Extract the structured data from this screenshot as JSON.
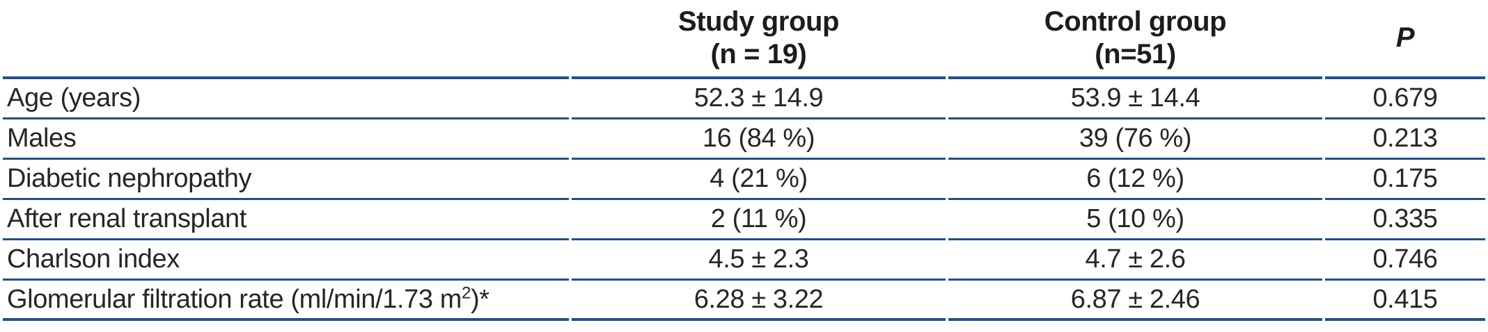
{
  "colors": {
    "rule_blue": "#1f4e8f",
    "text": "#262626"
  },
  "table": {
    "headers": {
      "parameter": "",
      "study_line1": "Study group",
      "study_line2": "(n = 19)",
      "control_line1": "Control group",
      "control_line2": "(n=51)",
      "p": "P"
    },
    "rows": [
      {
        "label": "Age (years)",
        "study": "52.3 ± 14.9",
        "control": "53.9 ± 14.4",
        "p": "0.679"
      },
      {
        "label": "Males",
        "study": "16 (84 %)",
        "control": "39 (76 %)",
        "p": "0.213"
      },
      {
        "label": "Diabetic nephropathy",
        "study": "4 (21 %)",
        "control": "6 (12 %)",
        "p": "0.175"
      },
      {
        "label": "After renal transplant",
        "study": "2 (11 %)",
        "control": "5 (10 %)",
        "p": "0.335"
      },
      {
        "label": "Charlson index",
        "study": "4.5 ± 2.3",
        "control": "4.7 ± 2.6",
        "p": "0.746"
      },
      {
        "label": "Glomerular filtration rate (ml/min/1.73 m²)*",
        "study": "6.28 ± 3.22",
        "control": "6.87 ± 2.46",
        "p": "0.415"
      }
    ]
  }
}
